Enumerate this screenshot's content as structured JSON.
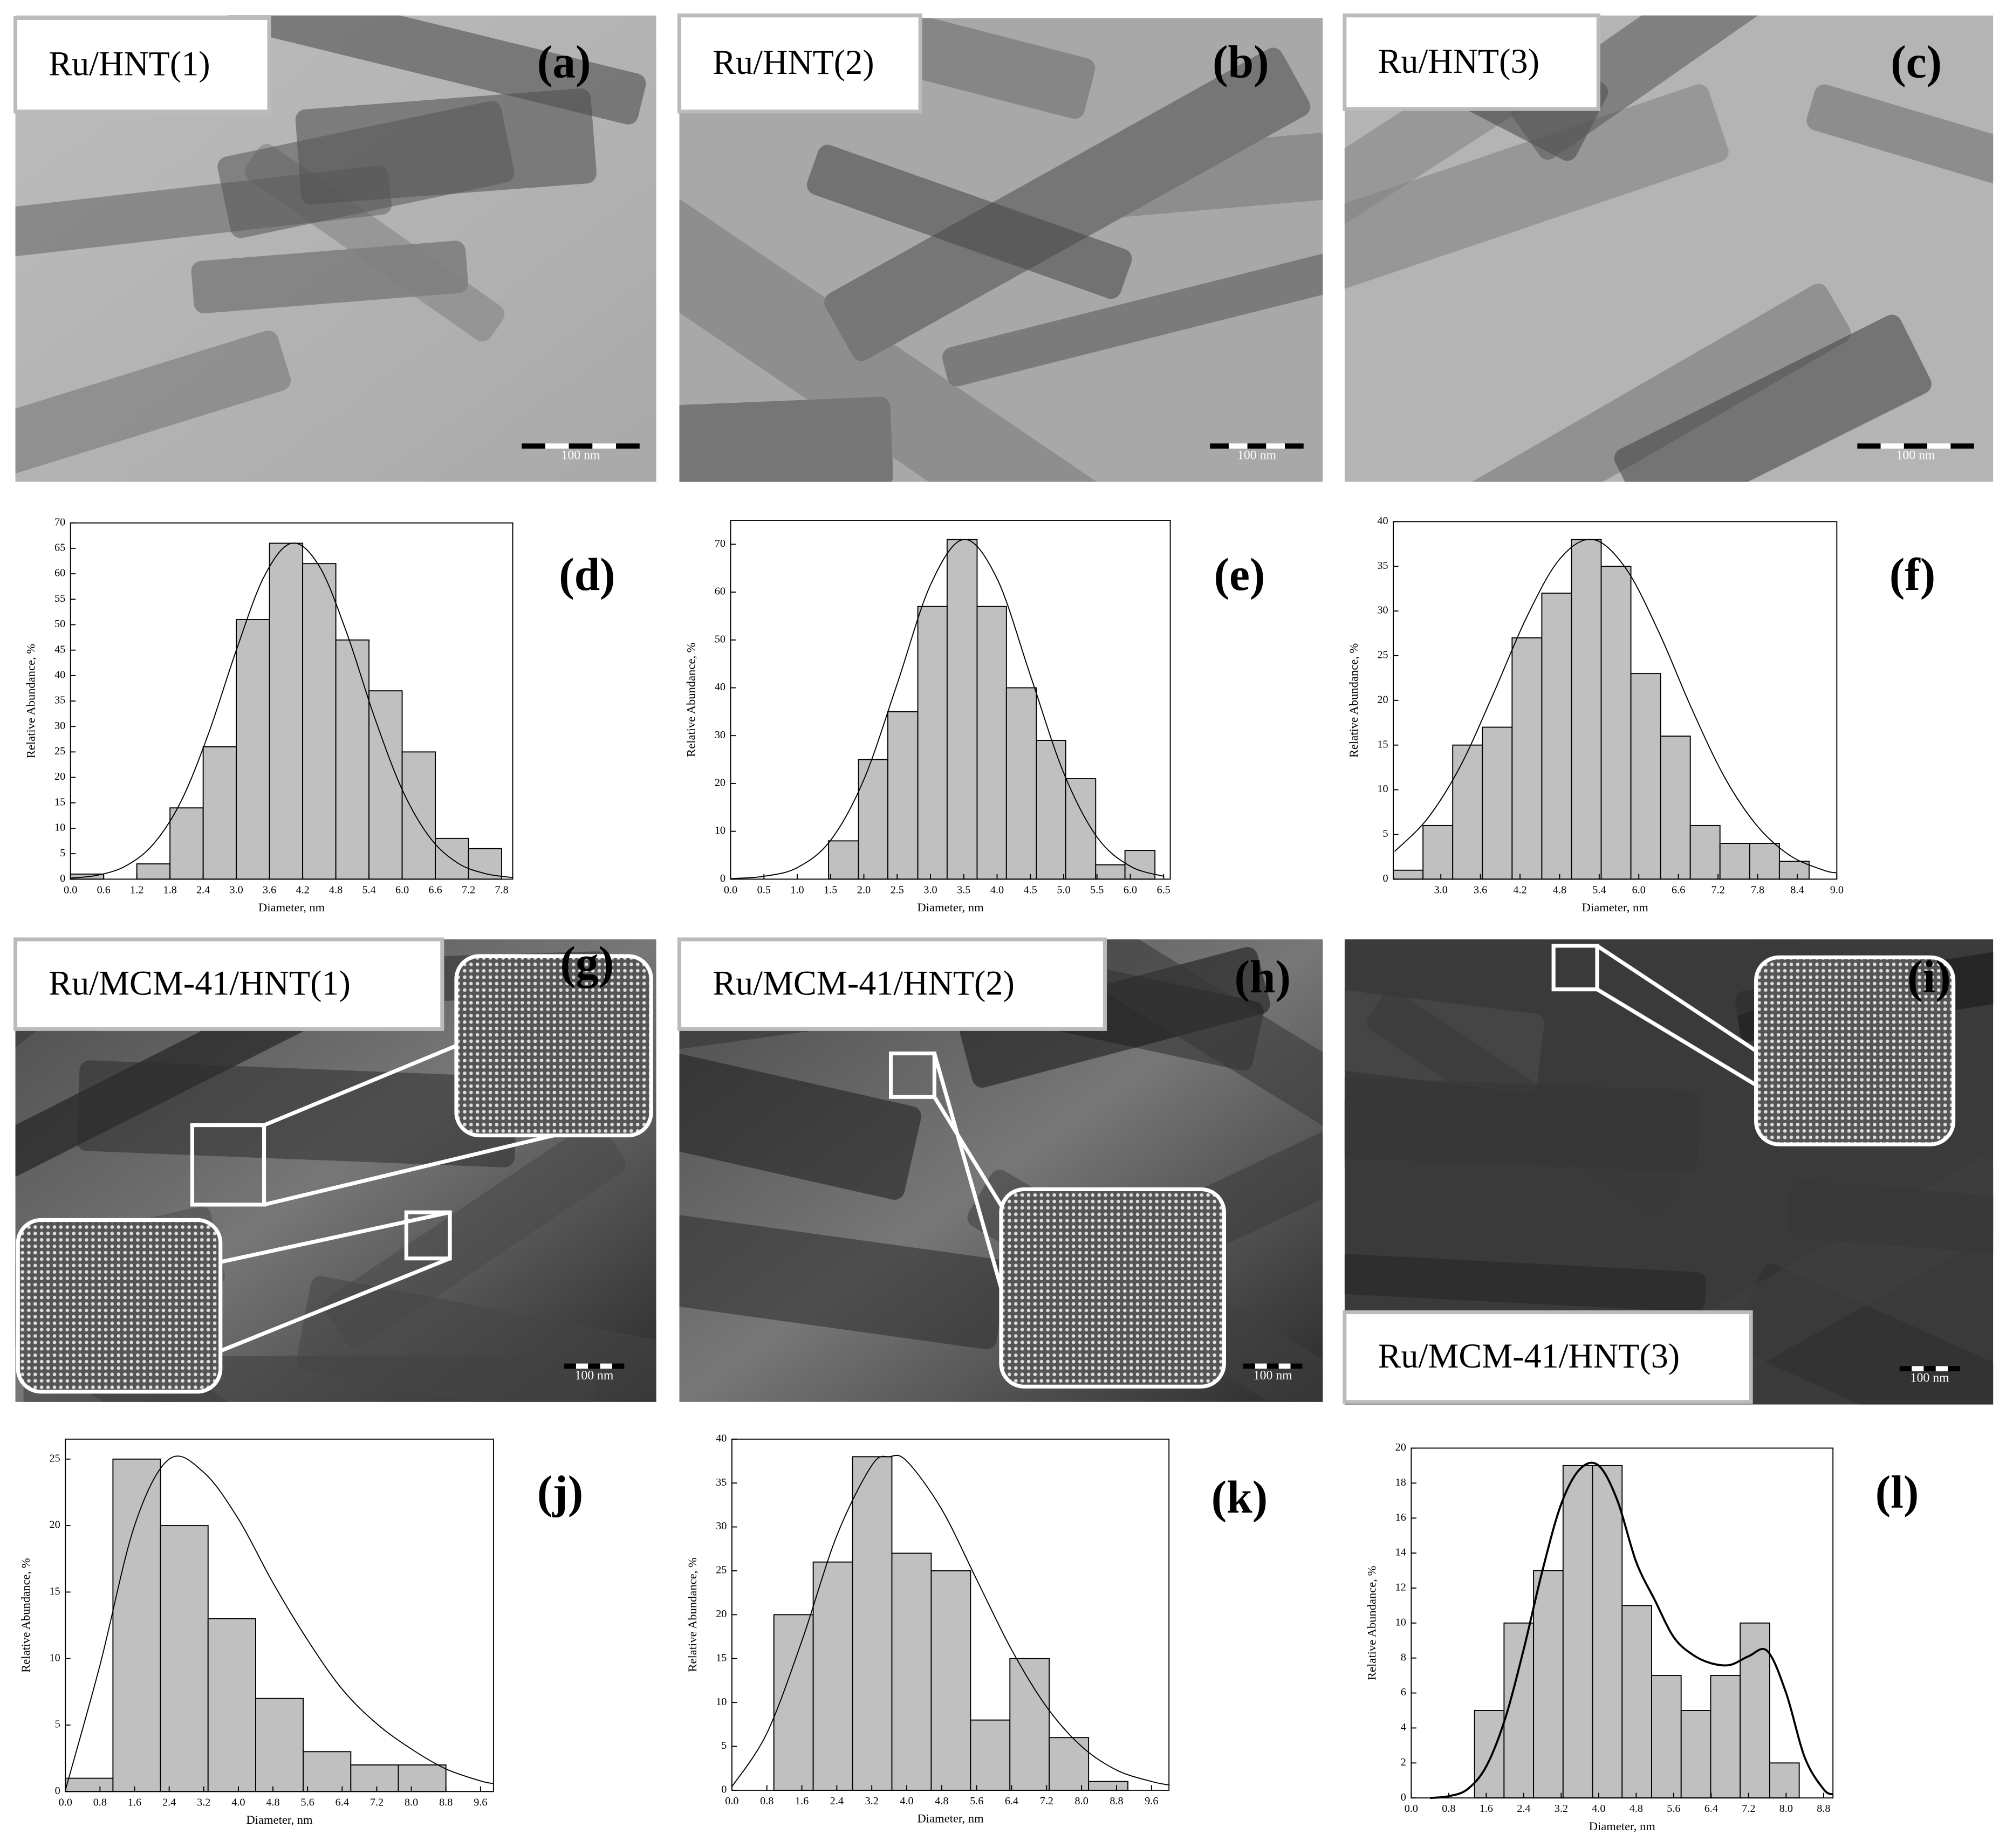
{
  "images": [
    {
      "label": "Ru/HNT(1)",
      "panel": "(a)",
      "scale": "100 nm"
    },
    {
      "label": "Ru/HNT(2)",
      "panel": "(b)",
      "scale": "100 nm"
    },
    {
      "label": "Ru/HNT(3)",
      "panel": "(c)",
      "scale": "100 nm"
    },
    {
      "label": "Ru/MCM-41/HNT(1)",
      "panel": "(g)",
      "scale": "100 nm"
    },
    {
      "label": "Ru/MCM-41/HNT(2)",
      "panel": "(h)",
      "scale": "100 nm"
    },
    {
      "label": "Ru/MCM-41/HNT(3)",
      "panel": "(i)",
      "scale": "100 nm"
    }
  ],
  "chart_data": [
    {
      "type": "histogram",
      "annotation": "(d)",
      "x_label": "Diameter, nm",
      "y_label": "Relative Abundance, %",
      "color": "#c0c0c0",
      "edge_color": "#000000",
      "bins": [
        0,
        0.6,
        1.2,
        1.8,
        2.4,
        3.0,
        3.6,
        4.2,
        4.8,
        5.4,
        6.0,
        6.6,
        7.2,
        7.8
      ],
      "values": [
        1,
        0,
        3,
        14,
        26,
        51,
        66,
        62,
        47,
        37,
        25,
        8,
        6
      ],
      "xlim": [
        0,
        8.0
      ],
      "ylim": [
        0,
        70
      ],
      "xticks": [
        {
          "value": 0,
          "label": "0.0"
        },
        0.6,
        1.2,
        1.8,
        2.4,
        {
          "value": 3,
          "label": "3.0"
        },
        3.6,
        4.2,
        4.8,
        5.4,
        {
          "value": 6,
          "label": "6.0"
        },
        6.6,
        7.2,
        7.8
      ],
      "yticks": [
        0,
        5,
        10,
        15,
        20,
        25,
        30,
        35,
        40,
        45,
        50,
        55,
        60,
        65,
        70
      ],
      "fit": {
        "x": [
          0,
          0.5,
          1.0,
          1.5,
          2.0,
          2.5,
          3.0,
          3.5,
          4.0,
          4.5,
          5.0,
          5.5,
          6.0,
          6.5,
          7.0,
          7.5,
          8.0
        ],
        "values": [
          0.2,
          0.8,
          2.6,
          6.9,
          15.3,
          28.7,
          45.0,
          59.4,
          66.0,
          61.5,
          48.3,
          31.8,
          17.6,
          8.2,
          3.2,
          1.1,
          0.3
        ]
      }
    },
    {
      "type": "histogram",
      "annotation": "(e)",
      "x_label": "Diameter, nm",
      "y_label": "Relative Abundance, %",
      "color": "#c0c0c0",
      "edge_color": "#000000",
      "bins": [
        1.47,
        1.92,
        2.36,
        2.81,
        3.25,
        3.7,
        4.14,
        4.59,
        5.03,
        5.48,
        5.92,
        6.37
      ],
      "values": [
        8,
        25,
        35,
        57,
        71,
        57,
        40,
        29,
        21,
        3,
        6
      ],
      "xlim": [
        0,
        6.6
      ],
      "ylim": [
        0,
        75
      ],
      "xticks": [
        {
          "value": 0,
          "label": "0.0"
        },
        0.5,
        {
          "value": 1,
          "label": "1.0"
        },
        1.5,
        {
          "value": 2,
          "label": "2.0"
        },
        2.5,
        {
          "value": 3,
          "label": "3.0"
        },
        3.5,
        {
          "value": 4,
          "label": "4.0"
        },
        4.5,
        {
          "value": 5,
          "label": "5.0"
        },
        5.5,
        {
          "value": 6,
          "label": "6.0"
        },
        6.5
      ],
      "yticks": [
        0,
        10,
        20,
        30,
        40,
        50,
        60,
        70
      ],
      "fit": {
        "x": [
          0,
          0.5,
          1.0,
          1.5,
          2.0,
          2.5,
          3.0,
          3.5,
          4.0,
          4.5,
          5.0,
          5.5,
          6.0,
          6.5
        ],
        "values": [
          0.1,
          0.6,
          2.4,
          8.1,
          20.8,
          40.8,
          61.5,
          71.0,
          62.8,
          42.6,
          22.2,
          8.8,
          2.7,
          0.6
        ]
      }
    },
    {
      "type": "histogram",
      "annotation": "(f)",
      "x_label": "Diameter, nm",
      "y_label": "Relative Abundance, %",
      "color": "#c0c0c0",
      "edge_color": "#000000",
      "bins": [
        2.28,
        2.73,
        3.18,
        3.63,
        4.08,
        4.53,
        4.98,
        5.43,
        5.88,
        6.33,
        6.78,
        7.23,
        7.68,
        8.13,
        8.58
      ],
      "values": [
        1,
        6,
        15,
        17,
        27,
        32,
        38,
        35,
        23,
        16,
        6,
        4,
        4,
        2
      ],
      "xlim": [
        2.28,
        9.0
      ],
      "ylim": [
        0,
        40
      ],
      "xticks": [
        {
          "value": 3,
          "label": "3.0"
        },
        3.6,
        4.2,
        4.8,
        5.4,
        {
          "value": 6,
          "label": "6.0"
        },
        6.6,
        7.2,
        7.8,
        8.4,
        {
          "value": 9,
          "label": "9.0"
        }
      ],
      "yticks": [
        0,
        5,
        10,
        15,
        20,
        25,
        30,
        35,
        40
      ],
      "fit": {
        "x": [
          2.3,
          2.8,
          3.3,
          3.8,
          4.3,
          4.8,
          5.3,
          5.8,
          6.3,
          6.8,
          7.3,
          7.8,
          8.3,
          8.8,
          9.0
        ],
        "values": [
          3.1,
          6.8,
          12.7,
          20.8,
          29.3,
          35.8,
          38.0,
          34.8,
          27.7,
          19.1,
          11.4,
          5.9,
          2.6,
          1.0,
          0.7
        ]
      }
    },
    {
      "type": "histogram",
      "annotation": "(j)",
      "x_label": "Diameter, nm",
      "y_label": "Relative Abundance, %",
      "color": "#c0c0c0",
      "edge_color": "#000000",
      "bins": [
        0,
        1.1,
        2.2,
        3.3,
        4.4,
        5.5,
        6.6,
        7.7,
        8.8
      ],
      "values": [
        1,
        25,
        20,
        13,
        7,
        3,
        2,
        2
      ],
      "xlim": [
        0,
        9.9
      ],
      "ylim": [
        0,
        26.5
      ],
      "xticks": [
        {
          "value": 0,
          "label": "0.0"
        },
        0.8,
        1.6,
        2.4,
        3.2,
        {
          "value": 4,
          "label": "4.0"
        },
        4.8,
        5.6,
        6.4,
        7.2,
        {
          "value": 8,
          "label": "8.0"
        },
        8.8,
        9.6
      ],
      "yticks": [
        0,
        5,
        10,
        15,
        20,
        25
      ],
      "fit": {
        "x": [
          0,
          0.8,
          1.6,
          2.4,
          3.2,
          4.0,
          4.8,
          5.6,
          6.4,
          7.2,
          8.0,
          8.8,
          9.6,
          9.9
        ],
        "values": [
          0.1,
          9.5,
          20.0,
          25.0,
          24.0,
          20.5,
          15.7,
          11.4,
          7.7,
          5.1,
          3.2,
          1.7,
          0.8,
          0.6
        ]
      }
    },
    {
      "type": "histogram",
      "annotation": "(k)",
      "x_label": "Diameter, nm",
      "y_label": "Relative Abundance, %",
      "color": "#c0c0c0",
      "edge_color": "#000000",
      "bins": [
        0.96,
        1.86,
        2.76,
        3.66,
        4.56,
        5.46,
        6.36,
        7.26,
        8.16,
        9.06
      ],
      "values": [
        20,
        26,
        38,
        27,
        25,
        8,
        15,
        6,
        1
      ],
      "xlim": [
        0,
        10.0
      ],
      "ylim": [
        0,
        40
      ],
      "xticks": [
        {
          "value": 0,
          "label": "0.0"
        },
        0.8,
        1.6,
        2.4,
        3.2,
        {
          "value": 4,
          "label": "4.0"
        },
        4.8,
        5.6,
        6.4,
        7.2,
        {
          "value": 8,
          "label": "8.0"
        },
        8.8,
        9.6
      ],
      "yticks": [
        0,
        5,
        10,
        15,
        20,
        25,
        30,
        35,
        40
      ],
      "fit": {
        "x": [
          0,
          0.8,
          1.6,
          2.4,
          3.2,
          3.6,
          4.0,
          4.8,
          5.6,
          6.4,
          7.2,
          8.0,
          8.8,
          9.6,
          10.0
        ],
        "values": [
          0.4,
          6.5,
          17.0,
          29.0,
          37.0,
          38.0,
          37.5,
          32.0,
          24.0,
          16.0,
          9.5,
          5.0,
          2.3,
          1.0,
          0.6
        ]
      }
    },
    {
      "type": "histogram",
      "annotation": "(l)",
      "x_label": "Diameter, nm",
      "y_label": "Relative Abundance, %",
      "color": "#c0c0c0",
      "edge_color": "#000000",
      "bins": [
        1.35,
        1.98,
        2.61,
        3.24,
        3.87,
        4.5,
        5.13,
        5.76,
        6.39,
        7.02,
        7.65,
        8.28
      ],
      "values": [
        5,
        10,
        13,
        19,
        19,
        11,
        7,
        5,
        7,
        10,
        2
      ],
      "xlim": [
        0,
        9.0
      ],
      "ylim": [
        0,
        20
      ],
      "xticks": [
        {
          "value": 0,
          "label": "0.0"
        },
        0.8,
        1.6,
        2.4,
        3.2,
        {
          "value": 4,
          "label": "4.0"
        },
        4.8,
        5.6,
        6.4,
        7.2,
        {
          "value": 8,
          "label": "8.0"
        },
        8.8
      ],
      "yticks": [
        0,
        2,
        4,
        6,
        8,
        10,
        12,
        14,
        16,
        18,
        20
      ],
      "fit": {
        "x": [
          0.4,
          0.8,
          1.2,
          1.6,
          2.0,
          2.4,
          2.8,
          3.2,
          3.6,
          4.0,
          4.4,
          4.8,
          5.2,
          5.6,
          6.0,
          6.4,
          6.8,
          7.2,
          7.6,
          8.0,
          8.4,
          8.8,
          9.0
        ],
        "values": [
          0,
          0.1,
          0.5,
          1.8,
          4.5,
          8.5,
          13.0,
          16.8,
          18.8,
          19.0,
          17.0,
          13.5,
          11.3,
          9.2,
          8.2,
          7.7,
          7.6,
          8.1,
          8.4,
          6.0,
          2.3,
          0.5,
          0.2
        ]
      }
    }
  ]
}
